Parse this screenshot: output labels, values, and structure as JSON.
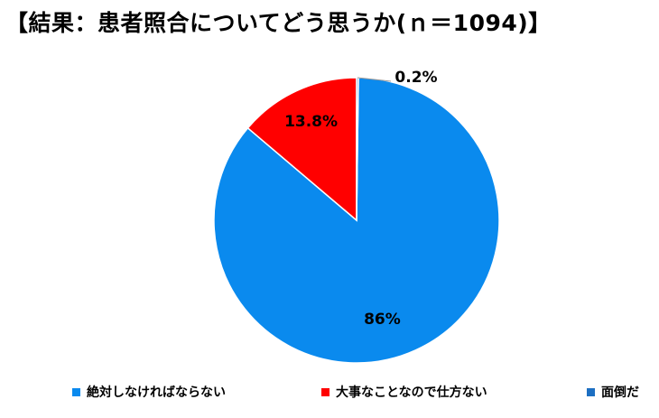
{
  "chart_data": {
    "type": "pie",
    "title": "【結果：患者照合についてどう思うか(ｎ＝1094)】",
    "slices": [
      {
        "name": "絶対しなければならない",
        "value": 86.0,
        "label": "86%",
        "color": "#0a8aee"
      },
      {
        "name": "大事なことなので仕方ない",
        "value": 13.8,
        "label": "13.8%",
        "color": "#ff0000"
      },
      {
        "name": "面倒だ",
        "value": 0.2,
        "label": "0.2%",
        "color": "#1d6fc2"
      }
    ],
    "legend_position": "bottom"
  }
}
